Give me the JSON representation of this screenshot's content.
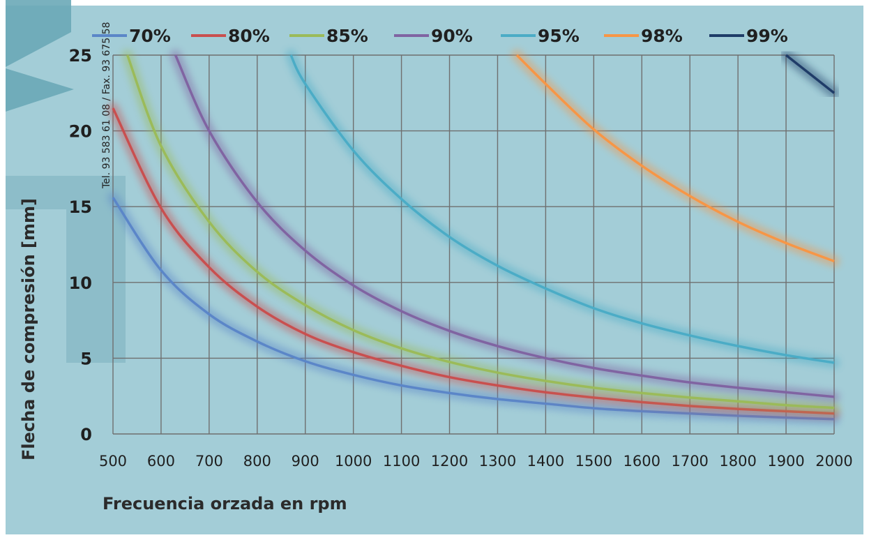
{
  "watermark_text": "Tel. 93 583 61 08  / Fax. 93 675 58",
  "chart_data": {
    "type": "line",
    "title": "",
    "xlabel": "Frecuencia orzada en rpm",
    "ylabel": "Flecha de compresión [mm]",
    "xlim": [
      500,
      2000
    ],
    "ylim": [
      0,
      25
    ],
    "x_ticks": [
      "500",
      "600",
      "700",
      "800",
      "900",
      "1000",
      "1100",
      "1200",
      "1300",
      "1400",
      "1500",
      "1600",
      "1700",
      "1800",
      "1900",
      "2000"
    ],
    "y_ticks": [
      "0",
      "5",
      "10",
      "15",
      "20",
      "25"
    ],
    "grid": true,
    "legend_position": "top",
    "series": [
      {
        "name": "70%",
        "color": "#5b86c8",
        "x": [
          500,
          600,
          700,
          800,
          900,
          1000,
          1100,
          1200,
          1300,
          1400,
          1500,
          1600,
          1700,
          1800,
          1900,
          2000
        ],
        "values": [
          15.6,
          10.8,
          7.9,
          6.1,
          4.8,
          3.9,
          3.2,
          2.7,
          2.3,
          2.0,
          1.7,
          1.5,
          1.35,
          1.2,
          1.08,
          0.98
        ]
      },
      {
        "name": "80%",
        "color": "#c94f4f",
        "x": [
          500,
          600,
          700,
          800,
          900,
          1000,
          1100,
          1200,
          1300,
          1400,
          1500,
          1600,
          1700,
          1800,
          1900,
          2000
        ],
        "values": [
          21.5,
          14.9,
          11.0,
          8.4,
          6.6,
          5.4,
          4.5,
          3.75,
          3.2,
          2.75,
          2.4,
          2.1,
          1.85,
          1.65,
          1.5,
          1.35
        ]
      },
      {
        "name": "85%",
        "color": "#9bbb59",
        "x": [
          530,
          600,
          700,
          800,
          900,
          1000,
          1100,
          1200,
          1300,
          1400,
          1500,
          1600,
          1700,
          1800,
          1900,
          2000
        ],
        "values": [
          25,
          19.0,
          14.0,
          10.7,
          8.5,
          6.85,
          5.65,
          4.75,
          4.05,
          3.5,
          3.05,
          2.7,
          2.4,
          2.15,
          1.9,
          1.72
        ]
      },
      {
        "name": "90%",
        "color": "#8064a2",
        "x": [
          630,
          700,
          800,
          900,
          1000,
          1100,
          1200,
          1300,
          1400,
          1500,
          1600,
          1700,
          1800,
          1900,
          2000
        ],
        "values": [
          25,
          20.0,
          15.3,
          12.1,
          9.8,
          8.1,
          6.8,
          5.8,
          5.0,
          4.35,
          3.85,
          3.4,
          3.05,
          2.75,
          2.45
        ]
      },
      {
        "name": "95%",
        "color": "#4bacc6",
        "x": [
          870,
          900,
          1000,
          1100,
          1200,
          1300,
          1400,
          1500,
          1600,
          1700,
          1800,
          1900,
          2000
        ],
        "values": [
          25,
          23.1,
          18.7,
          15.5,
          13.0,
          11.1,
          9.6,
          8.3,
          7.3,
          6.5,
          5.8,
          5.2,
          4.7
        ]
      },
      {
        "name": "98%",
        "color": "#f79646",
        "x": [
          1340,
          1400,
          1500,
          1600,
          1700,
          1800,
          1900,
          2000
        ],
        "values": [
          25,
          23.1,
          20.1,
          17.7,
          15.7,
          14.0,
          12.6,
          11.4
        ]
      },
      {
        "name": "99%",
        "color": "#1f3c68",
        "x": [
          1900,
          2000
        ],
        "values": [
          25,
          22.5
        ]
      }
    ]
  }
}
